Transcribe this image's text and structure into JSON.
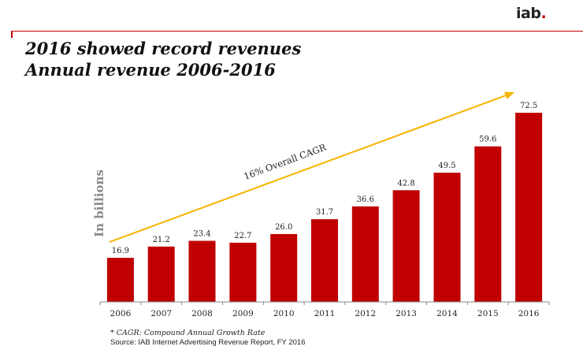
{
  "logo": {
    "text": "iab",
    "dot": "."
  },
  "colors": {
    "accent": "#c00000",
    "bar": "#c00000",
    "trend": "#f5b400"
  },
  "chart_data": {
    "type": "bar",
    "title": "2016 showed record revenues",
    "subtitle": "Annual revenue 2006-2016",
    "ylabel": "In billions",
    "categories": [
      "2006",
      "2007",
      "2008",
      "2009",
      "2010",
      "2011",
      "2012",
      "2013",
      "2014",
      "2015",
      "2016"
    ],
    "values": [
      16.9,
      21.2,
      23.4,
      22.7,
      26.0,
      31.7,
      36.6,
      42.8,
      49.5,
      59.6,
      72.5
    ],
    "data_labels": [
      "16.9",
      "21.2",
      "23.4",
      "22.7",
      "26.0",
      "31.7",
      "36.6",
      "42.8",
      "49.5",
      "59.6",
      "72.5"
    ],
    "ylim": [
      0,
      72.5
    ],
    "grid": false,
    "annotation": {
      "text": "16% Overall CAGR"
    }
  },
  "footnote": "* CAGR: Compound Annual Growth Rate",
  "source": "Source: IAB Internet Advertising Revenue Report, FY 2016"
}
